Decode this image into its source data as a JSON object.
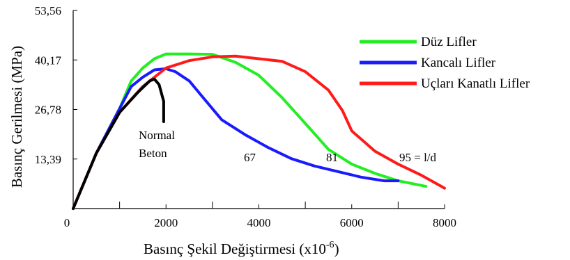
{
  "chart_data": {
    "type": "line",
    "xlabel": "Basınç Şekil Değiştirmesi (x10",
    "xlabel_sup": "-6",
    "xlabel_end": ")",
    "ylabel": "Basınç Gerilmesi (MPa)",
    "xlim": [
      0,
      8000
    ],
    "ylim": [
      0,
      53.56
    ],
    "x_ticks": [
      0,
      2000,
      4000,
      6000,
      8000
    ],
    "x_tick_labels": [
      "0",
      "2000",
      "4000",
      "6000",
      "8000"
    ],
    "y_ticks": [
      13.39,
      26.78,
      40.17,
      53.56
    ],
    "y_tick_labels": [
      "13,39",
      "26,78",
      "40,17",
      "53,56"
    ],
    "grid": false,
    "legend_position": "top-right",
    "series": [
      {
        "name": "Düz Lifler",
        "color": "#22ee22",
        "points": [
          [
            0,
            0
          ],
          [
            500,
            15
          ],
          [
            1000,
            27
          ],
          [
            1250,
            34.5
          ],
          [
            1500,
            38
          ],
          [
            1750,
            40.5
          ],
          [
            2000,
            41.8
          ],
          [
            2500,
            41.8
          ],
          [
            3000,
            41.7
          ],
          [
            3500,
            39.5
          ],
          [
            4000,
            36
          ],
          [
            4500,
            30
          ],
          [
            5000,
            23
          ],
          [
            5500,
            16
          ],
          [
            6000,
            12
          ],
          [
            6500,
            9.5
          ],
          [
            7000,
            7.5
          ],
          [
            7600,
            6
          ]
        ]
      },
      {
        "name": "Kancalı Lifler",
        "color": "#1a1aff",
        "points": [
          [
            0,
            0
          ],
          [
            500,
            15
          ],
          [
            1000,
            27
          ],
          [
            1250,
            33
          ],
          [
            1500,
            35.5
          ],
          [
            1750,
            37.5
          ],
          [
            2000,
            37.8
          ],
          [
            2200,
            37
          ],
          [
            2500,
            34.5
          ],
          [
            2800,
            30
          ],
          [
            3200,
            24
          ],
          [
            3700,
            20
          ],
          [
            4200,
            16.5
          ],
          [
            4700,
            13.5
          ],
          [
            5200,
            11.5
          ],
          [
            5700,
            10
          ],
          [
            6200,
            8.5
          ],
          [
            6700,
            7.5
          ],
          [
            7000,
            7.5
          ]
        ]
      },
      {
        "name": "Uçları Kanatlı Lifler",
        "color": "#ff1a1a",
        "points": [
          [
            0,
            0
          ],
          [
            500,
            15
          ],
          [
            1000,
            26
          ],
          [
            1500,
            33
          ],
          [
            2000,
            38
          ],
          [
            2500,
            40
          ],
          [
            3000,
            41
          ],
          [
            3500,
            41.2
          ],
          [
            4000,
            40.5
          ],
          [
            4500,
            39.8
          ],
          [
            5000,
            37
          ],
          [
            5500,
            32
          ],
          [
            5800,
            26.5
          ],
          [
            6000,
            21
          ],
          [
            6500,
            15.5
          ],
          [
            7000,
            12
          ],
          [
            7500,
            9
          ],
          [
            8000,
            5.5
          ]
        ]
      },
      {
        "name": "",
        "color": "#000000",
        "points": [
          [
            0,
            0
          ],
          [
            500,
            15
          ],
          [
            1000,
            26
          ],
          [
            1400,
            31.5
          ],
          [
            1650,
            34.5
          ],
          [
            1750,
            35
          ],
          [
            1850,
            33.5
          ],
          [
            1950,
            29
          ],
          [
            1950,
            23.5
          ]
        ]
      }
    ],
    "annotations": [
      "Normal",
      "Beton",
      "67",
      "81",
      "95 = l/d"
    ]
  }
}
